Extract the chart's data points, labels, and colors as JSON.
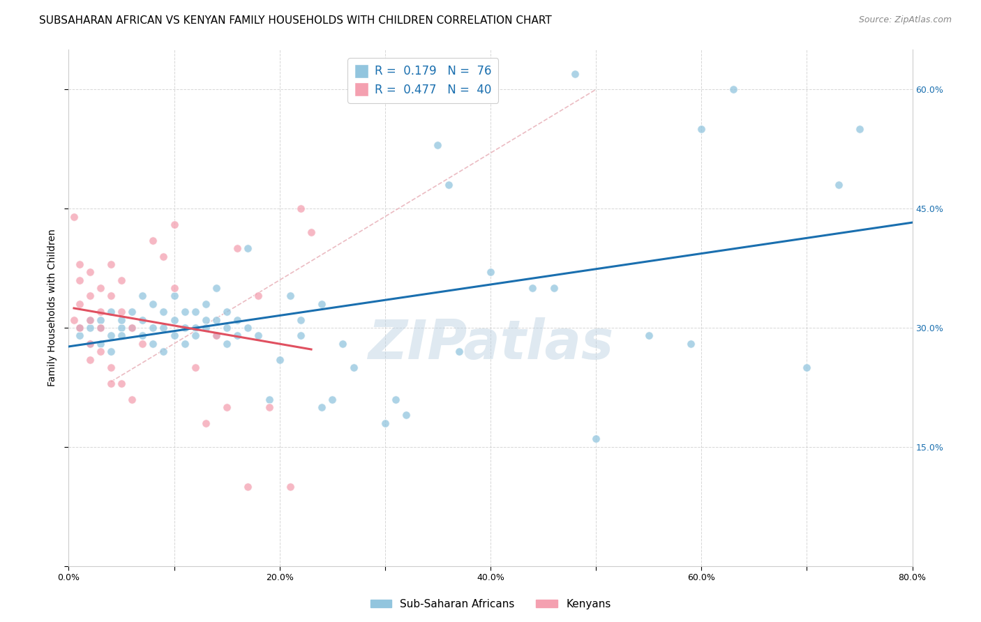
{
  "title": "SUBSAHARAN AFRICAN VS KENYAN FAMILY HOUSEHOLDS WITH CHILDREN CORRELATION CHART",
  "source": "Source: ZipAtlas.com",
  "ylabel": "Family Households with Children",
  "legend_blue_label": "Sub-Saharan Africans",
  "legend_pink_label": "Kenyans",
  "r_blue": "0.179",
  "n_blue": "76",
  "r_pink": "0.477",
  "n_pink": "40",
  "blue_color": "#92c5de",
  "pink_color": "#f4a0b0",
  "trendline_blue_color": "#1a6faf",
  "trendline_pink_color": "#e05060",
  "trendline_diagonal_color": "#e8b0b8",
  "background_color": "#ffffff",
  "xlim": [
    0.0,
    0.8
  ],
  "ylim": [
    0.0,
    0.65
  ],
  "xticks": [
    0.0,
    0.1,
    0.2,
    0.3,
    0.4,
    0.5,
    0.6,
    0.7,
    0.8
  ],
  "xticklabels": [
    "0.0%",
    "",
    "20.0%",
    "",
    "40.0%",
    "",
    "60.0%",
    "",
    "80.0%"
  ],
  "yticks_left": [
    0.0,
    0.15,
    0.3,
    0.45,
    0.6
  ],
  "yticklabels_left": [
    "",
    "",
    "",
    "",
    ""
  ],
  "yticks_right": [
    0.15,
    0.3,
    0.45,
    0.6
  ],
  "yticklabels_right": [
    "15.0%",
    "30.0%",
    "45.0%",
    "60.0%"
  ],
  "blue_scatter": [
    [
      0.01,
      0.3
    ],
    [
      0.01,
      0.29
    ],
    [
      0.02,
      0.3
    ],
    [
      0.02,
      0.31
    ],
    [
      0.02,
      0.28
    ],
    [
      0.03,
      0.3
    ],
    [
      0.03,
      0.28
    ],
    [
      0.03,
      0.31
    ],
    [
      0.04,
      0.29
    ],
    [
      0.04,
      0.32
    ],
    [
      0.04,
      0.27
    ],
    [
      0.05,
      0.3
    ],
    [
      0.05,
      0.29
    ],
    [
      0.05,
      0.31
    ],
    [
      0.06,
      0.3
    ],
    [
      0.06,
      0.32
    ],
    [
      0.07,
      0.29
    ],
    [
      0.07,
      0.31
    ],
    [
      0.07,
      0.34
    ],
    [
      0.08,
      0.3
    ],
    [
      0.08,
      0.28
    ],
    [
      0.08,
      0.33
    ],
    [
      0.09,
      0.3
    ],
    [
      0.09,
      0.32
    ],
    [
      0.09,
      0.27
    ],
    [
      0.1,
      0.31
    ],
    [
      0.1,
      0.29
    ],
    [
      0.1,
      0.34
    ],
    [
      0.11,
      0.3
    ],
    [
      0.11,
      0.32
    ],
    [
      0.11,
      0.28
    ],
    [
      0.12,
      0.3
    ],
    [
      0.12,
      0.32
    ],
    [
      0.12,
      0.29
    ],
    [
      0.13,
      0.31
    ],
    [
      0.13,
      0.3
    ],
    [
      0.13,
      0.33
    ],
    [
      0.14,
      0.29
    ],
    [
      0.14,
      0.31
    ],
    [
      0.14,
      0.35
    ],
    [
      0.15,
      0.3
    ],
    [
      0.15,
      0.32
    ],
    [
      0.15,
      0.28
    ],
    [
      0.16,
      0.31
    ],
    [
      0.16,
      0.29
    ],
    [
      0.17,
      0.4
    ],
    [
      0.17,
      0.3
    ],
    [
      0.18,
      0.29
    ],
    [
      0.19,
      0.21
    ],
    [
      0.2,
      0.26
    ],
    [
      0.21,
      0.34
    ],
    [
      0.22,
      0.29
    ],
    [
      0.22,
      0.31
    ],
    [
      0.24,
      0.33
    ],
    [
      0.24,
      0.2
    ],
    [
      0.25,
      0.21
    ],
    [
      0.26,
      0.28
    ],
    [
      0.27,
      0.25
    ],
    [
      0.3,
      0.18
    ],
    [
      0.31,
      0.21
    ],
    [
      0.32,
      0.19
    ],
    [
      0.35,
      0.53
    ],
    [
      0.36,
      0.48
    ],
    [
      0.37,
      0.27
    ],
    [
      0.4,
      0.37
    ],
    [
      0.44,
      0.35
    ],
    [
      0.46,
      0.35
    ],
    [
      0.48,
      0.62
    ],
    [
      0.5,
      0.16
    ],
    [
      0.55,
      0.29
    ],
    [
      0.59,
      0.28
    ],
    [
      0.6,
      0.55
    ],
    [
      0.63,
      0.6
    ],
    [
      0.7,
      0.25
    ],
    [
      0.73,
      0.48
    ],
    [
      0.75,
      0.55
    ]
  ],
  "pink_scatter": [
    [
      0.005,
      0.44
    ],
    [
      0.005,
      0.31
    ],
    [
      0.01,
      0.38
    ],
    [
      0.01,
      0.36
    ],
    [
      0.01,
      0.33
    ],
    [
      0.01,
      0.3
    ],
    [
      0.02,
      0.37
    ],
    [
      0.02,
      0.34
    ],
    [
      0.02,
      0.31
    ],
    [
      0.02,
      0.28
    ],
    [
      0.02,
      0.26
    ],
    [
      0.03,
      0.35
    ],
    [
      0.03,
      0.32
    ],
    [
      0.03,
      0.3
    ],
    [
      0.03,
      0.27
    ],
    [
      0.04,
      0.38
    ],
    [
      0.04,
      0.34
    ],
    [
      0.04,
      0.25
    ],
    [
      0.04,
      0.23
    ],
    [
      0.05,
      0.36
    ],
    [
      0.05,
      0.32
    ],
    [
      0.05,
      0.23
    ],
    [
      0.06,
      0.21
    ],
    [
      0.06,
      0.3
    ],
    [
      0.07,
      0.28
    ],
    [
      0.08,
      0.41
    ],
    [
      0.09,
      0.39
    ],
    [
      0.1,
      0.43
    ],
    [
      0.1,
      0.35
    ],
    [
      0.12,
      0.25
    ],
    [
      0.13,
      0.18
    ],
    [
      0.14,
      0.29
    ],
    [
      0.15,
      0.2
    ],
    [
      0.16,
      0.4
    ],
    [
      0.17,
      0.1
    ],
    [
      0.18,
      0.34
    ],
    [
      0.19,
      0.2
    ],
    [
      0.21,
      0.1
    ],
    [
      0.22,
      0.45
    ],
    [
      0.23,
      0.42
    ]
  ],
  "watermark_text": "ZIPatlas",
  "watermark_color": "#b8cfe0",
  "title_fontsize": 11,
  "axis_label_fontsize": 10,
  "tick_fontsize": 9,
  "legend_fontsize": 12
}
